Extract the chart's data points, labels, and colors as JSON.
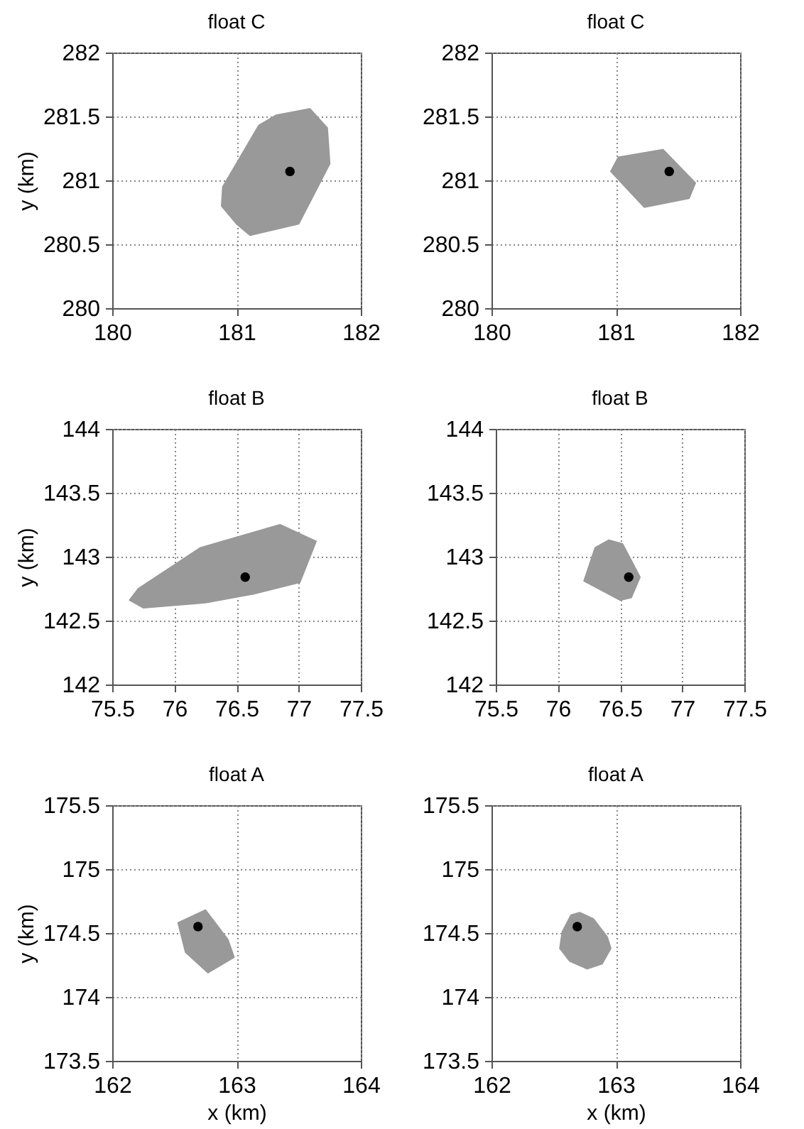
{
  "chart_data": [
    {
      "type": "scatter",
      "title": "float C",
      "ylabel": "y (km)",
      "xlim": [
        180,
        182
      ],
      "xticks": [
        180,
        181,
        182
      ],
      "ylim": [
        280,
        282
      ],
      "yticks": [
        280,
        280.5,
        281,
        281.5,
        282
      ],
      "grid": true,
      "series": [
        {
          "type": "area",
          "color": "#999999",
          "x": [
            181.59,
            181.73,
            181.75,
            181.5,
            181.11,
            181.0,
            180.88,
            180.89,
            181.18,
            181.32
          ],
          "values": [
            281.56,
            281.41,
            281.13,
            280.66,
            280.57,
            280.66,
            280.8,
            280.95,
            281.43,
            281.51
          ]
        },
        {
          "marker": "circle",
          "color": "#000000",
          "x": [
            181.43
          ],
          "values": [
            281.07
          ]
        }
      ]
    },
    {
      "type": "scatter",
      "title": "float C",
      "xlim": [
        180,
        182
      ],
      "xticks": [
        180,
        181,
        182
      ],
      "ylim": [
        280,
        282
      ],
      "yticks": [
        280,
        280.5,
        281,
        281.5,
        282
      ],
      "grid": true,
      "series": [
        {
          "type": "area",
          "color": "#999999",
          "x": [
            181.38,
            181.64,
            181.59,
            181.23,
            180.96,
            181.02
          ],
          "values": [
            281.24,
            280.98,
            280.86,
            280.79,
            281.07,
            281.18
          ]
        },
        {
          "marker": "circle",
          "color": "#000000",
          "x": [
            181.43
          ],
          "values": [
            281.07
          ]
        }
      ]
    },
    {
      "type": "scatter",
      "title": "float B",
      "ylabel": "y (km)",
      "xlim": [
        75.5,
        77.5
      ],
      "xticks": [
        75.5,
        76,
        76.5,
        77,
        77.5
      ],
      "ylim": [
        142,
        144
      ],
      "yticks": [
        142,
        142.5,
        143,
        143.5,
        144
      ],
      "grid": true,
      "series": [
        {
          "type": "area",
          "color": "#999999",
          "x": [
            76.85,
            77.14,
            77.01,
            76.64,
            76.25,
            75.75,
            75.64,
            75.71,
            76.21
          ],
          "values": [
            143.25,
            143.12,
            142.8,
            142.71,
            142.64,
            142.6,
            142.66,
            142.75,
            143.07
          ]
        },
        {
          "marker": "circle",
          "color": "#000000",
          "x": [
            76.57
          ],
          "values": [
            142.84
          ]
        }
      ]
    },
    {
      "type": "scatter",
      "title": "float B",
      "xlim": [
        75.5,
        77.5
      ],
      "xticks": [
        75.5,
        76,
        76.5,
        77,
        77.5
      ],
      "ylim": [
        142,
        144
      ],
      "yticks": [
        142,
        142.5,
        143,
        143.5,
        144
      ],
      "grid": true,
      "series": [
        {
          "type": "area",
          "color": "#999999",
          "x": [
            76.41,
            76.52,
            76.66,
            76.59,
            76.5,
            76.21,
            76.3
          ],
          "values": [
            143.13,
            143.1,
            142.84,
            142.68,
            142.66,
            142.81,
            143.07
          ]
        },
        {
          "marker": "circle",
          "color": "#000000",
          "x": [
            76.57
          ],
          "values": [
            142.84
          ]
        }
      ]
    },
    {
      "type": "scatter",
      "title": "float A",
      "xlabel": "x (km)",
      "ylabel": "y (km)",
      "xlim": [
        162,
        164
      ],
      "xticks": [
        162,
        163,
        164
      ],
      "ylim": [
        173.5,
        175.5
      ],
      "yticks": [
        173.5,
        174,
        174.5,
        175,
        175.5
      ],
      "grid": true,
      "series": [
        {
          "type": "area",
          "color": "#999999",
          "x": [
            162.75,
            162.93,
            162.98,
            162.77,
            162.59,
            162.53
          ],
          "values": [
            174.68,
            174.45,
            174.31,
            174.19,
            174.35,
            174.58
          ]
        },
        {
          "marker": "circle",
          "color": "#000000",
          "x": [
            162.69
          ],
          "values": [
            174.55
          ]
        }
      ]
    },
    {
      "type": "scatter",
      "title": "float A",
      "xlabel": "x (km)",
      "xlim": [
        162,
        164
      ],
      "xticks": [
        162,
        163,
        164
      ],
      "ylim": [
        173.5,
        175.5
      ],
      "yticks": [
        173.5,
        174,
        174.5,
        175,
        175.5
      ],
      "grid": true,
      "series": [
        {
          "type": "area",
          "color": "#999999",
          "x": [
            162.71,
            162.82,
            162.93,
            162.96,
            162.89,
            162.77,
            162.63,
            162.55,
            162.57,
            162.64
          ],
          "values": [
            174.66,
            174.61,
            174.47,
            174.38,
            174.26,
            174.22,
            174.28,
            174.38,
            174.51,
            174.64
          ]
        },
        {
          "marker": "circle",
          "color": "#000000",
          "x": [
            162.69
          ],
          "values": [
            174.55
          ]
        }
      ]
    }
  ]
}
